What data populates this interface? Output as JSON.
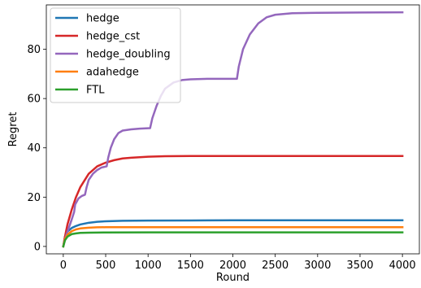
{
  "chart_data": {
    "type": "line",
    "title": "",
    "xlabel": "Round",
    "ylabel": "Regret",
    "xlim": [
      -200,
      4200
    ],
    "ylim": [
      -3,
      98
    ],
    "xticks": [
      0,
      500,
      1000,
      1500,
      2000,
      2500,
      3000,
      3500,
      4000
    ],
    "yticks": [
      0,
      20,
      40,
      60,
      80
    ],
    "grid": false,
    "legend_position": "top-left",
    "series": [
      {
        "name": "hedge",
        "color": "#1f77b4",
        "x": [
          0,
          20,
          50,
          100,
          150,
          200,
          300,
          400,
          500,
          700,
          1000,
          1500,
          2000,
          3000,
          4000
        ],
        "y": [
          0,
          4,
          6,
          7.5,
          8.3,
          8.9,
          9.6,
          10.0,
          10.2,
          10.4,
          10.5,
          10.55,
          10.6,
          10.6,
          10.6
        ]
      },
      {
        "name": "hedge_cst",
        "color": "#d62728",
        "x": [
          0,
          20,
          50,
          100,
          150,
          200,
          300,
          400,
          500,
          600,
          700,
          800,
          1000,
          1200,
          1500,
          2000,
          3000,
          4000
        ],
        "y": [
          0,
          4,
          9,
          15,
          20,
          24,
          29.5,
          32.5,
          34,
          35,
          35.7,
          36,
          36.4,
          36.6,
          36.7,
          36.7,
          36.7,
          36.7
        ]
      },
      {
        "name": "hedge_doubling",
        "color": "#9467bd",
        "x": [
          0,
          30,
          60,
          100,
          128,
          140,
          180,
          220,
          256,
          275,
          300,
          350,
          400,
          450,
          512,
          530,
          560,
          600,
          650,
          700,
          800,
          900,
          1024,
          1050,
          1100,
          1150,
          1200,
          1300,
          1400,
          1500,
          1700,
          2048,
          2070,
          2120,
          2200,
          2300,
          2400,
          2500,
          2700,
          3000,
          3500,
          4000
        ],
        "y": [
          0,
          4,
          7,
          11,
          14,
          17,
          19.5,
          20.5,
          21,
          24,
          27,
          29.5,
          31,
          32,
          32.5,
          36,
          40,
          43.5,
          46,
          47,
          47.5,
          47.8,
          48,
          52,
          57,
          61,
          64,
          66.5,
          67.5,
          67.8,
          68,
          68,
          73,
          80,
          86,
          90.5,
          93,
          94,
          94.6,
          94.8,
          94.9,
          95
        ]
      },
      {
        "name": "adahedge",
        "color": "#ff7f0e",
        "x": [
          0,
          20,
          50,
          100,
          150,
          200,
          300,
          400,
          500,
          1000,
          2000,
          3000,
          4000
        ],
        "y": [
          0,
          3,
          4.8,
          6.2,
          6.9,
          7.3,
          7.6,
          7.75,
          7.8,
          7.8,
          7.8,
          7.8,
          7.8
        ]
      },
      {
        "name": "FTL",
        "color": "#2ca02c",
        "x": [
          0,
          20,
          50,
          100,
          150,
          200,
          300,
          500,
          1000,
          2000,
          3000,
          4000
        ],
        "y": [
          0,
          2.5,
          4,
          5,
          5.3,
          5.5,
          5.6,
          5.65,
          5.7,
          5.7,
          5.7,
          5.7
        ]
      }
    ]
  }
}
